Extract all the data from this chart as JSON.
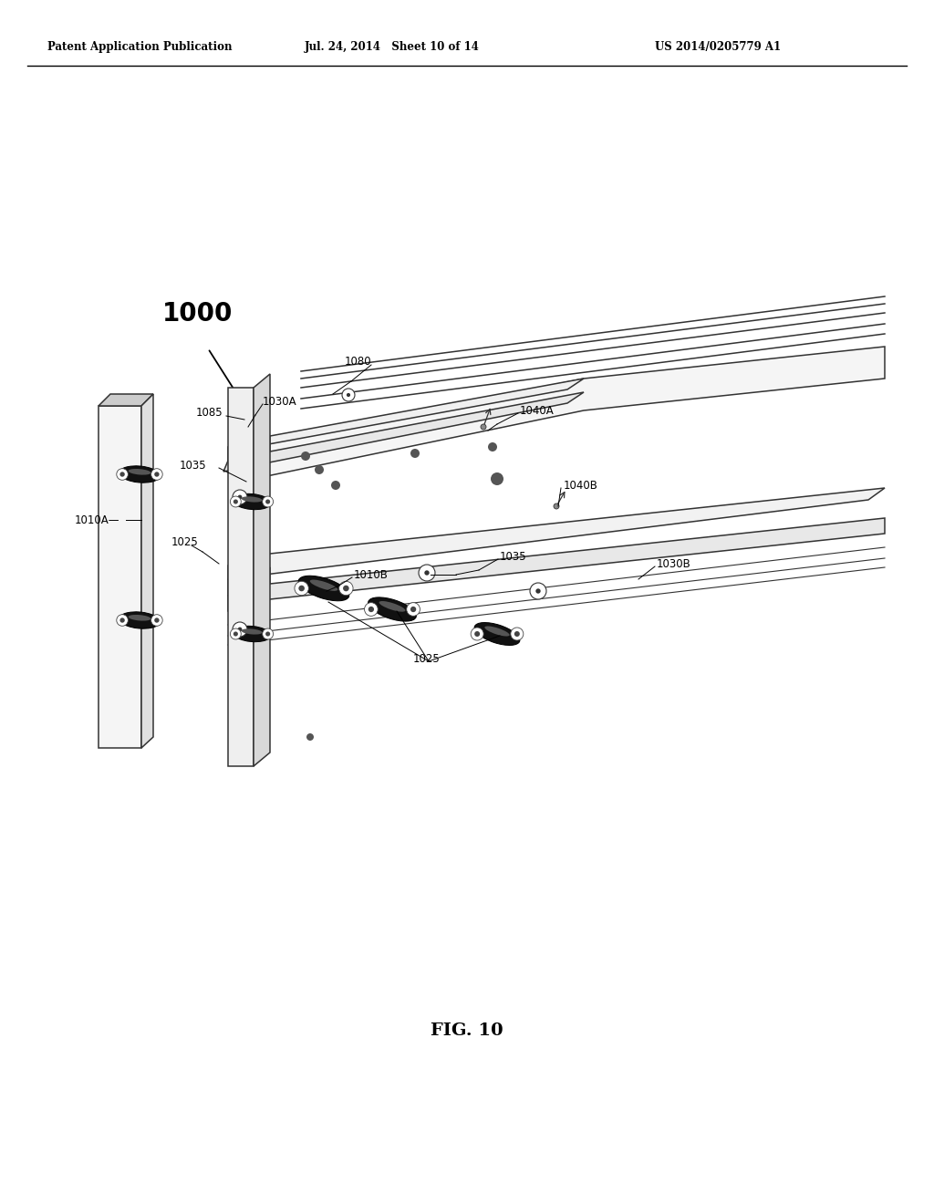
{
  "bg_color": "#ffffff",
  "header_left": "Patent Application Publication",
  "header_mid": "Jul. 24, 2014   Sheet 10 of 14",
  "header_right": "US 2014/0205779 A1",
  "figure_label": "FIG. 10",
  "dg": "#333333",
  "mg": "#777777",
  "panel_face": "#f0f0f0",
  "panel_side": "#d8d8d8",
  "panel_top": "#e4e4e4",
  "clip_dark": "#1a1a1a"
}
